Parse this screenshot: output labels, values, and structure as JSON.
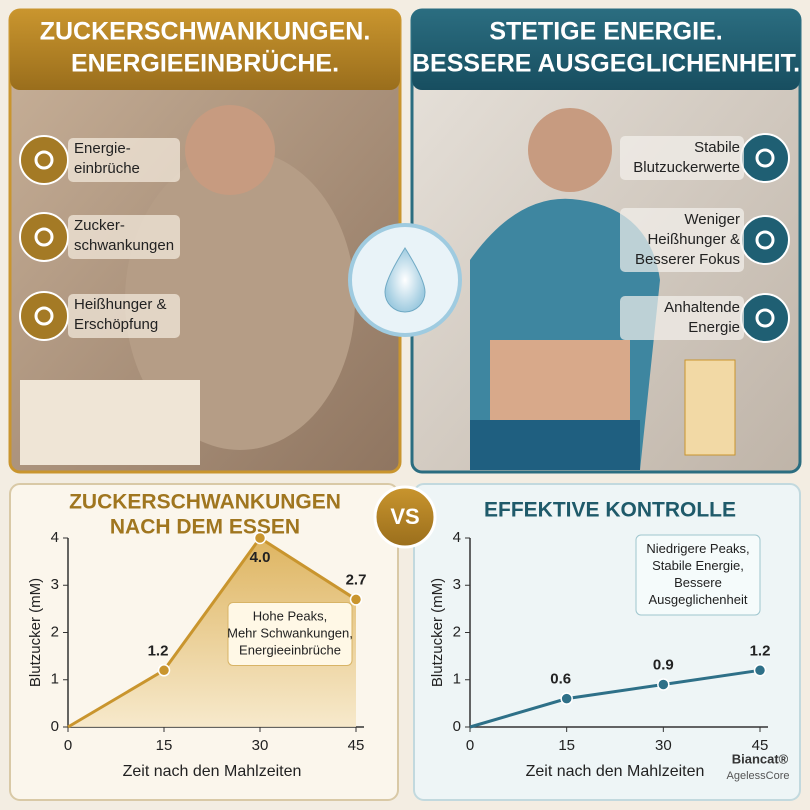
{
  "panels": {
    "left": {
      "title": [
        "ZUCKERSCHWANKUNGEN.",
        "ENERGIEEINBRÜCHE."
      ],
      "items": [
        [
          "Energie-",
          "einbrüche"
        ],
        [
          "Zucker-",
          "schwankungen"
        ],
        [
          "Heißhunger &",
          "Erschöpfung"
        ]
      ]
    },
    "right": {
      "title": [
        "STETIGE ENERGIE.",
        "BESSERE AUSGEGLICHENHEIT."
      ],
      "items": [
        [
          "Stabile",
          "Blutzuckerwerte"
        ],
        [
          "Weniger",
          "Heißhunger &",
          "Besserer Fokus"
        ],
        [
          "Anhaltende",
          "Energie"
        ]
      ]
    }
  },
  "vs": "VS",
  "brand": {
    "name": "Biancat®",
    "sub": "AgelessCore"
  },
  "chart_data": [
    {
      "type": "area",
      "title": [
        "ZUCKERSCHWANKUNGEN",
        "NACH DEM ESSEN"
      ],
      "x_label": "Zeit nach den Mahlzeiten",
      "y_label": "Blutzucker (mM)",
      "x": [
        0,
        15,
        30,
        45
      ],
      "values": [
        0,
        1.2,
        4.0,
        2.7
      ],
      "value_labels": [
        null,
        "1.2",
        "4.0",
        "2.7"
      ],
      "color": "#c9952e",
      "xlim": [
        0,
        45
      ],
      "ylim": [
        0,
        4
      ],
      "xticks": [
        0,
        15,
        30,
        45
      ],
      "yticks": [
        0,
        1,
        2,
        3,
        4
      ],
      "annotation": [
        "Hohe Peaks,",
        "Mehr Schwankungen,",
        "Energieeinbrüche"
      ]
    },
    {
      "type": "line",
      "title": [
        "EFFEKTIVE KONTROLLE"
      ],
      "x_label": "Zeit nach den Mahlzeiten",
      "y_label": "Blutzucker (mM)",
      "x": [
        0,
        15,
        30,
        45
      ],
      "values": [
        0,
        0.6,
        0.9,
        1.2
      ],
      "color": "#2e7088",
      "xlim": [
        0,
        45
      ],
      "ylim": [
        0,
        4
      ],
      "xticks": [
        0,
        15,
        30,
        45
      ],
      "yticks": [
        0,
        1,
        2,
        3,
        4
      ],
      "annotation": [
        "Niedrigere Peaks,",
        "Stabile Energie,",
        "Bessere",
        "Ausgeglichenheit"
      ]
    }
  ]
}
